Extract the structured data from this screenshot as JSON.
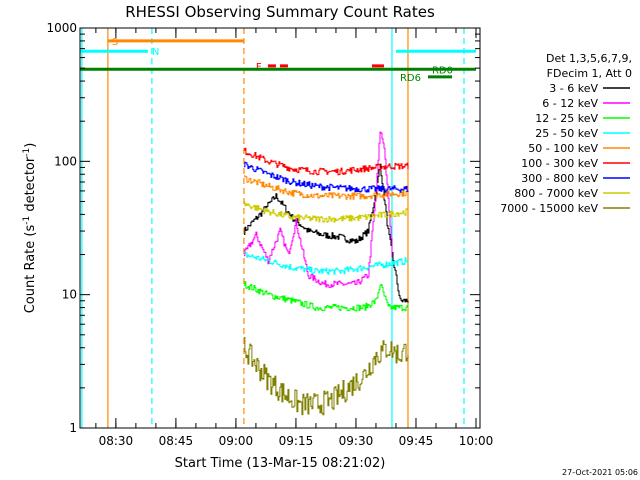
{
  "chart_data": {
    "type": "line",
    "title": "RHESSI Observing Summary Count Rates",
    "xlabel": "Start Time (13-Mar-15 08:21:02)",
    "ylabel_pre": "Count Rate (s",
    "ylabel_sup": "-1",
    "ylabel_post": " detector",
    "ylabel_sup2": "-1",
    "ylabel_end": ")",
    "yscale": "log",
    "ylim": [
      1,
      1000
    ],
    "xlim": [
      "08:21:02",
      "10:01:00"
    ],
    "y_ticks": [
      {
        "v": 1,
        "label": "1"
      },
      {
        "v": 10,
        "label": "10"
      },
      {
        "v": 100,
        "label": "100"
      },
      {
        "v": 1000,
        "label": "1000"
      }
    ],
    "x_ticks": [
      {
        "t": "08:30",
        "label": "08:30"
      },
      {
        "t": "08:45",
        "label": "08:45"
      },
      {
        "t": "09:00",
        "label": "09:00"
      },
      {
        "t": "09:15",
        "label": "09:15"
      },
      {
        "t": "09:30",
        "label": "09:30"
      },
      {
        "t": "09:45",
        "label": "09:45"
      },
      {
        "t": "10:00",
        "label": "10:00"
      }
    ],
    "legend_header": [
      "Det 1,3,5,6,7,9,",
      "FDecim 1, Att 0"
    ],
    "series": [
      {
        "name": "3 - 6 keV",
        "color": "#000000",
        "x": [
          "09:02",
          "09:06",
          "09:10",
          "09:14",
          "09:18",
          "09:22",
          "09:26",
          "09:30",
          "09:33",
          "09:35",
          "09:36",
          "09:38",
          "09:41",
          "09:43"
        ],
        "values": [
          30,
          40,
          55,
          38,
          30,
          28,
          27,
          25,
          30,
          60,
          95,
          30,
          9,
          9
        ]
      },
      {
        "name": "6 - 12 keV",
        "color": "#ff00ff",
        "x": [
          "09:02",
          "09:05",
          "09:08",
          "09:11",
          "09:13",
          "09:15",
          "09:18",
          "09:22",
          "09:26",
          "09:30",
          "09:33",
          "09:35",
          "09:36",
          "09:37",
          "09:39"
        ],
        "values": [
          20,
          28,
          18,
          30,
          20,
          35,
          14,
          12,
          12,
          12,
          14,
          60,
          170,
          130,
          20
        ]
      },
      {
        "name": "12 - 25 keV",
        "color": "#00ff00",
        "x": [
          "09:02",
          "09:08",
          "09:14",
          "09:20",
          "09:26",
          "09:32",
          "09:35",
          "09:36",
          "09:38",
          "09:43"
        ],
        "values": [
          12,
          10,
          9,
          8,
          8,
          8,
          9,
          12,
          8,
          8
        ]
      },
      {
        "name": "25 - 50 keV",
        "color": "#00ffff",
        "x": [
          "09:02",
          "09:08",
          "09:14",
          "09:20",
          "09:26",
          "09:32",
          "09:38",
          "09:43"
        ],
        "values": [
          20,
          18,
          16,
          15,
          15,
          16,
          17,
          18
        ]
      },
      {
        "name": "50 - 100 keV",
        "color": "#ff8800",
        "x": [
          "09:02",
          "09:08",
          "09:14",
          "09:20",
          "09:26",
          "09:32",
          "09:38",
          "09:43"
        ],
        "values": [
          75,
          65,
          58,
          55,
          55,
          55,
          57,
          58
        ]
      },
      {
        "name": "100 - 300 keV",
        "color": "#ff0000",
        "x": [
          "09:02",
          "09:08",
          "09:14",
          "09:20",
          "09:26",
          "09:32",
          "09:38",
          "09:43"
        ],
        "values": [
          120,
          100,
          88,
          84,
          84,
          88,
          92,
          92
        ]
      },
      {
        "name": "300 - 800 keV",
        "color": "#0000ff",
        "x": [
          "09:02",
          "09:08",
          "09:14",
          "09:20",
          "09:26",
          "09:32",
          "09:38",
          "09:43"
        ],
        "values": [
          95,
          80,
          70,
          65,
          63,
          62,
          62,
          62
        ]
      },
      {
        "name": "800 - 7000 keV",
        "color": "#cccc00",
        "x": [
          "09:02",
          "09:08",
          "09:14",
          "09:20",
          "09:26",
          "09:32",
          "09:38",
          "09:43"
        ],
        "values": [
          48,
          42,
          38,
          37,
          37,
          38,
          40,
          42
        ]
      },
      {
        "name": "7000 - 15000 keV",
        "color": "#808000",
        "x": [
          "09:02",
          "09:05",
          "09:08",
          "09:12",
          "09:16",
          "09:20",
          "09:24",
          "09:28",
          "09:32",
          "09:35",
          "09:38",
          "09:41",
          "09:43"
        ],
        "values": [
          4,
          3,
          2.3,
          1.8,
          1.5,
          1.5,
          1.6,
          2,
          2.5,
          3.5,
          4,
          3.5,
          4
        ]
      }
    ],
    "flag_bars": [
      {
        "label": "S",
        "color": "#ff8800",
        "y": 800,
        "segments": [
          [
            "08:28",
            "09:02"
          ]
        ],
        "label_at": "08:29"
      },
      {
        "label": "N",
        "color": "#00ffff",
        "y": 670,
        "segments": [
          [
            "08:21",
            "08:38"
          ],
          [
            "09:40",
            "10:00"
          ]
        ],
        "label_at": "08:39"
      },
      {
        "label": "F",
        "color": "#ff0000",
        "y": 520,
        "segments": [
          [
            "09:08",
            "09:10"
          ],
          [
            "09:11",
            "09:13"
          ],
          [
            "09:34",
            "09:37"
          ]
        ],
        "label_at": "09:05"
      },
      {
        "label": "",
        "color": "#008000",
        "y": 490,
        "segments": [
          [
            "08:21",
            "10:00"
          ]
        ],
        "label_at": ""
      },
      {
        "label": "RD0",
        "color": "#008000",
        "y": 490,
        "segments": [],
        "label_at": "09:49"
      },
      {
        "label": "RD6",
        "color": "#008000",
        "y": 430,
        "segments": [
          [
            "09:48",
            "09:54"
          ]
        ],
        "label_at": "09:41"
      }
    ],
    "vlines": [
      {
        "t": "08:21:30",
        "color": "#00ffff",
        "dash": false
      },
      {
        "t": "08:28",
        "color": "#ff8800",
        "dash": false
      },
      {
        "t": "08:39",
        "color": "#00ffff",
        "dash": true
      },
      {
        "t": "09:02",
        "color": "#ff8800",
        "dash": true
      },
      {
        "t": "09:39",
        "color": "#00ffff",
        "dash": false
      },
      {
        "t": "09:43",
        "color": "#ff8800",
        "dash": false
      },
      {
        "t": "09:57",
        "color": "#00ffff",
        "dash": true
      }
    ],
    "footer_date": "27-Oct-2021 05:06"
  }
}
